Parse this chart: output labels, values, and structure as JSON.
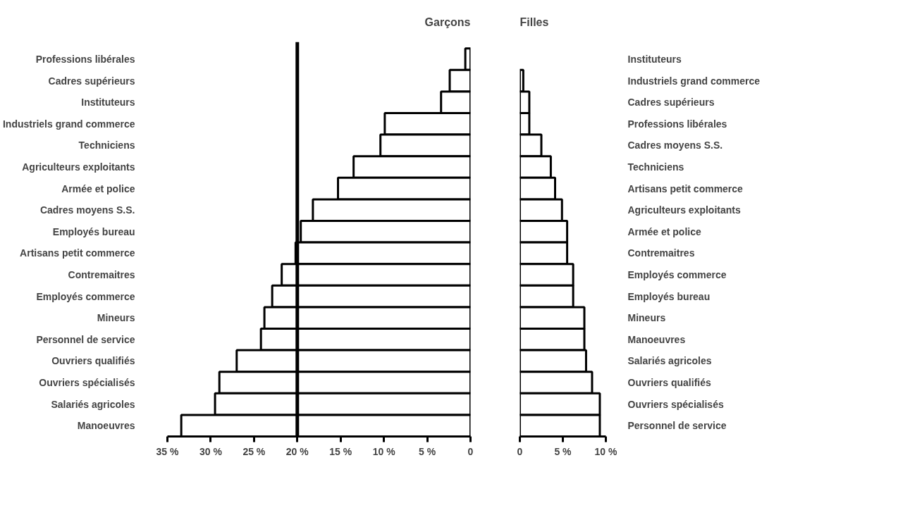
{
  "chart_data": [
    {
      "type": "bar",
      "orientation": "horizontal",
      "title": "Garçons",
      "categories": [
        "Professions libérales",
        "Cadres supérieurs",
        "Instituteurs",
        "Industriels grand commerce",
        "Techniciens",
        "Agriculteurs exploitants",
        "Armée et police",
        "Cadres moyens S.S.",
        "Employés bureau",
        "Artisans petit commerce",
        "Contremaitres",
        "Employés commerce",
        "Mineurs",
        "Personnel de service",
        "Ouvriers qualifiés",
        "Ouvriers spécialisés",
        "Salariés agricoles",
        "Manoeuvres"
      ],
      "values": [
        0.6,
        2.4,
        3.4,
        9.9,
        10.4,
        13.5,
        15.3,
        18.2,
        19.6,
        20.2,
        21.8,
        22.9,
        23.8,
        24.2,
        27.0,
        29.0,
        29.5,
        33.4
      ],
      "color": "#ffffff",
      "xlim": [
        35,
        0
      ],
      "xticks": [
        {
          "value": 35,
          "label": "35 %"
        },
        {
          "value": 30,
          "label": "30 %"
        },
        {
          "value": 25,
          "label": "25 %"
        },
        {
          "value": 20,
          "label": "20 %"
        },
        {
          "value": 15,
          "label": "15 %"
        },
        {
          "value": 10,
          "label": "10 %"
        },
        {
          "value": 5,
          "label": "5 %"
        },
        0
      ],
      "ref_lines": [
        {
          "axis": "x",
          "value": 20,
          "color": "#000000"
        }
      ],
      "grid": false
    },
    {
      "type": "bar",
      "orientation": "horizontal",
      "title": "Filles",
      "categories": [
        "Instituteurs",
        "Industriels grand commerce",
        "Cadres supérieurs",
        "Professions libérales",
        "Cadres moyens S.S.",
        "Techniciens",
        "Artisans petit commerce",
        "Agriculteurs exploitants",
        "Armée et police",
        "Contremaitres",
        "Employés commerce",
        "Employés bureau",
        "Mineurs",
        "Manoeuvres",
        "Salariés agricoles",
        "Ouvriers qualifiés",
        "Ouvriers spécialisés",
        "Personnel de service"
      ],
      "values": [
        0,
        0.4,
        1.1,
        1.1,
        2.5,
        3.6,
        4.1,
        4.9,
        5.5,
        5.5,
        6.2,
        6.2,
        7.5,
        7.5,
        7.7,
        8.4,
        9.3,
        9.3
      ],
      "color": "#ffffff",
      "xlim": [
        0,
        10
      ],
      "xticks": [
        0,
        {
          "value": 5,
          "label": "5 %"
        },
        {
          "value": 10,
          "label": "10 %"
        }
      ],
      "grid": false
    }
  ]
}
